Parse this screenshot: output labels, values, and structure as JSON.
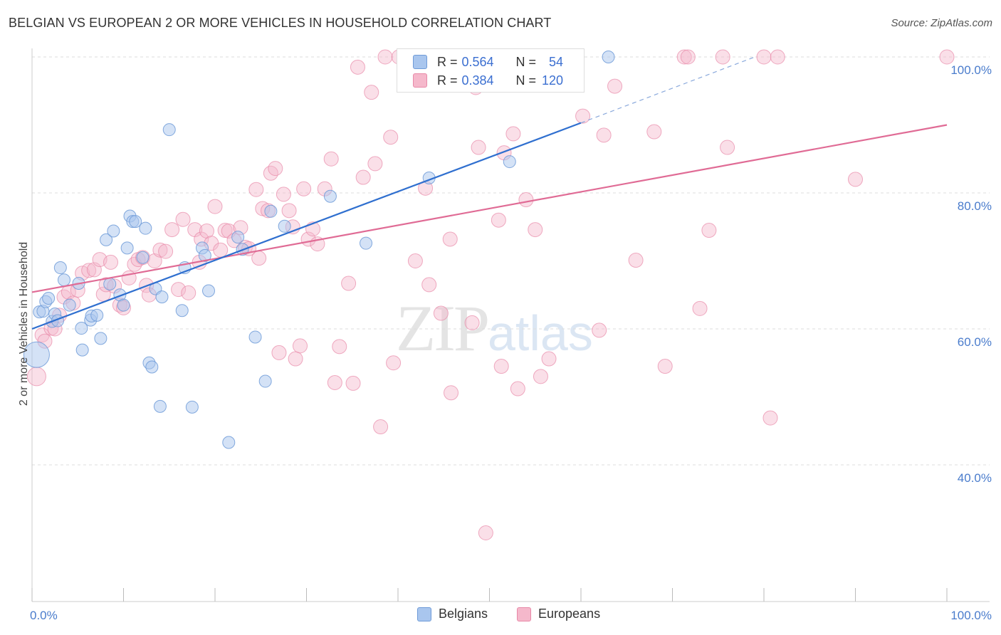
{
  "title": "BELGIAN VS EUROPEAN 2 OR MORE VEHICLES IN HOUSEHOLD CORRELATION CHART",
  "source": "Source: ZipAtlas.com",
  "watermark": {
    "zip": "ZIP",
    "atlas": "atlas"
  },
  "colors": {
    "belgians_fill": "#a9c6ee",
    "belgians_stroke": "#6f9bd8",
    "belgians_line": "#2f6fcf",
    "europeans_fill": "#f5b8cb",
    "europeans_stroke": "#e889a8",
    "europeans_line": "#e06b95",
    "grid": "#dddddd",
    "tick_label": "#4a7ccc"
  },
  "legend": {
    "rows": [
      {
        "r_label": "R = ",
        "r_value": "0.564",
        "n_label": "N = ",
        "n_value": "54"
      },
      {
        "r_label": "R = ",
        "r_value": "0.384",
        "n_label": "N = ",
        "n_value": "120"
      }
    ],
    "bottom": [
      "Belgians",
      "Europeans"
    ]
  },
  "chart_data": {
    "type": "scatter",
    "title": "BELGIAN VS EUROPEAN 2 OR MORE VEHICLES IN HOUSEHOLD CORRELATION CHART",
    "xlabel": "",
    "ylabel": "2 or more Vehicles in Household",
    "xlim": [
      0,
      100
    ],
    "ylim": [
      20,
      102
    ],
    "x_ticks": [
      0,
      10,
      20,
      30,
      40,
      50,
      60,
      70,
      80,
      90,
      100
    ],
    "x_tick_labels": {
      "0": "0.0%",
      "100": "100.0%"
    },
    "y_ticks": [
      40,
      60,
      80,
      100
    ],
    "y_tick_labels": [
      "40.0%",
      "60.0%",
      "80.0%",
      "100.0%"
    ],
    "grid": true,
    "legend_position": "top-center",
    "series": [
      {
        "name": "Belgians",
        "r": 0.564,
        "n": 54,
        "trend": {
          "x0": 0,
          "y0": 60.0,
          "x1": 60,
          "y1": 90.3,
          "dashed_to_x": 79,
          "dashed_to_y": 100
        },
        "points": [
          [
            0.5,
            56.2
          ],
          [
            0.8,
            62.5
          ],
          [
            1.2,
            62.6
          ],
          [
            1.5,
            64
          ],
          [
            1.8,
            64.5
          ],
          [
            2.2,
            61.1
          ],
          [
            2.5,
            62.2
          ],
          [
            2.8,
            61.2
          ],
          [
            3.1,
            69
          ],
          [
            3.5,
            67.2
          ],
          [
            4.1,
            63.5
          ],
          [
            5.1,
            66.7
          ],
          [
            5.5,
            56.9
          ],
          [
            5.4,
            60.1
          ],
          [
            6.4,
            61.3
          ],
          [
            6.5,
            61.9
          ],
          [
            7.1,
            62
          ],
          [
            7.5,
            58.6
          ],
          [
            8.1,
            73.1
          ],
          [
            8.5,
            66.6
          ],
          [
            8.9,
            74.4
          ],
          [
            9.6,
            65
          ],
          [
            10,
            63.5
          ],
          [
            10.4,
            71.9
          ],
          [
            10.7,
            76.6
          ],
          [
            11,
            75.8
          ],
          [
            11.3,
            75.8
          ],
          [
            12.1,
            70.5
          ],
          [
            12.4,
            74.8
          ],
          [
            12.8,
            55
          ],
          [
            13.1,
            54.4
          ],
          [
            13.5,
            65.9
          ],
          [
            14,
            48.6
          ],
          [
            14.2,
            64.7
          ],
          [
            15,
            89.3
          ],
          [
            16.4,
            62.7
          ],
          [
            16.7,
            69
          ],
          [
            17.5,
            48.5
          ],
          [
            18.6,
            71.9
          ],
          [
            18.9,
            70.8
          ],
          [
            19.3,
            65.6
          ],
          [
            21.5,
            43.3
          ],
          [
            22.5,
            73.5
          ],
          [
            23,
            71.7
          ],
          [
            24.4,
            58.8
          ],
          [
            25.5,
            52.3
          ],
          [
            26.1,
            77.3
          ],
          [
            27.6,
            75.1
          ],
          [
            32.6,
            79.5
          ],
          [
            36.5,
            72.6
          ],
          [
            43.4,
            82.2
          ],
          [
            52.2,
            84.6
          ],
          [
            55,
            100
          ],
          [
            63,
            100
          ]
        ]
      },
      {
        "name": "Europeans",
        "r": 0.384,
        "n": 120,
        "trend": {
          "x0": 0,
          "y0": 65.4,
          "x1": 100,
          "y1": 90.0
        },
        "points": [
          [
            0.5,
            53
          ],
          [
            1.1,
            59.1
          ],
          [
            1.4,
            58.2
          ],
          [
            2.1,
            60.1
          ],
          [
            2.5,
            60
          ],
          [
            3.0,
            62
          ],
          [
            3.5,
            64.7
          ],
          [
            4,
            65.4
          ],
          [
            4.5,
            63.8
          ],
          [
            5,
            65.7
          ],
          [
            5.5,
            68.2
          ],
          [
            6.2,
            68.6
          ],
          [
            6.8,
            68.7
          ],
          [
            7.4,
            70.2
          ],
          [
            7.8,
            65.1
          ],
          [
            8.1,
            66.5
          ],
          [
            8.6,
            69.8
          ],
          [
            9,
            66.3
          ],
          [
            9.6,
            63.5
          ],
          [
            10,
            63.1
          ],
          [
            10.6,
            67.5
          ],
          [
            11.2,
            69.5
          ],
          [
            11.6,
            70.2
          ],
          [
            12.1,
            70.5
          ],
          [
            12.5,
            66.4
          ],
          [
            12.8,
            65
          ],
          [
            13.4,
            70
          ],
          [
            14,
            71.6
          ],
          [
            14.6,
            71.4
          ],
          [
            15.3,
            74.6
          ],
          [
            16,
            65.8
          ],
          [
            16.5,
            76.1
          ],
          [
            17.1,
            65.3
          ],
          [
            17.8,
            74.6
          ],
          [
            18.3,
            69.8
          ],
          [
            18.5,
            73.2
          ],
          [
            19.1,
            74.4
          ],
          [
            19.6,
            72.6
          ],
          [
            20,
            78
          ],
          [
            20.6,
            71.6
          ],
          [
            21.1,
            74.5
          ],
          [
            21.5,
            74.4
          ],
          [
            22.1,
            73
          ],
          [
            22.8,
            74.9
          ],
          [
            23.3,
            72
          ],
          [
            23.7,
            71.8
          ],
          [
            24.5,
            80.5
          ],
          [
            24.8,
            70.4
          ],
          [
            25.2,
            77.7
          ],
          [
            25.8,
            77.4
          ],
          [
            26.1,
            82.9
          ],
          [
            26.6,
            83.6
          ],
          [
            27,
            56.5
          ],
          [
            27.5,
            79.8
          ],
          [
            28.1,
            77.4
          ],
          [
            28.5,
            75
          ],
          [
            28.8,
            55.6
          ],
          [
            29.3,
            57.5
          ],
          [
            29.7,
            80.6
          ],
          [
            30.2,
            73.2
          ],
          [
            30.7,
            74.7
          ],
          [
            31.2,
            72.5
          ],
          [
            32,
            80.6
          ],
          [
            32.7,
            85
          ],
          [
            33.1,
            52.1
          ],
          [
            33.6,
            57.4
          ],
          [
            34.6,
            66.7
          ],
          [
            35.1,
            52
          ],
          [
            35.6,
            98.5
          ],
          [
            36.2,
            82.3
          ],
          [
            37.1,
            94.8
          ],
          [
            37.5,
            84.3
          ],
          [
            38.1,
            45.6
          ],
          [
            38.6,
            100
          ],
          [
            39.2,
            88.2
          ],
          [
            39.5,
            55
          ],
          [
            40.1,
            100
          ],
          [
            41.5,
            100
          ],
          [
            41.9,
            70
          ],
          [
            43,
            80.7
          ],
          [
            43.4,
            66.5
          ],
          [
            44.1,
            100
          ],
          [
            44.7,
            62.3
          ],
          [
            45.5,
            99
          ],
          [
            45.7,
            73.2
          ],
          [
            45.8,
            50.6
          ],
          [
            47,
            100
          ],
          [
            48.1,
            60.9
          ],
          [
            48.5,
            95.5
          ],
          [
            48.8,
            86.7
          ],
          [
            49.6,
            30
          ],
          [
            51,
            76
          ],
          [
            51.3,
            54.5
          ],
          [
            51.6,
            85.9
          ],
          [
            52.6,
            88.7
          ],
          [
            53.1,
            51.2
          ],
          [
            54,
            79
          ],
          [
            55,
            74.6
          ],
          [
            55.6,
            53
          ],
          [
            56.5,
            55.6
          ],
          [
            56.8,
            100
          ],
          [
            60.2,
            91.3
          ],
          [
            62,
            59.8
          ],
          [
            62.5,
            88.5
          ],
          [
            63.7,
            95.7
          ],
          [
            66,
            70.1
          ],
          [
            68,
            89
          ],
          [
            69.2,
            54.5
          ],
          [
            71.3,
            100
          ],
          [
            71.7,
            100
          ],
          [
            73,
            63
          ],
          [
            74,
            74.5
          ],
          [
            75.5,
            100
          ],
          [
            76,
            86.7
          ],
          [
            80,
            100
          ],
          [
            80.7,
            46.9
          ],
          [
            81.5,
            100
          ],
          [
            90,
            82
          ],
          [
            100,
            100
          ]
        ]
      }
    ]
  }
}
